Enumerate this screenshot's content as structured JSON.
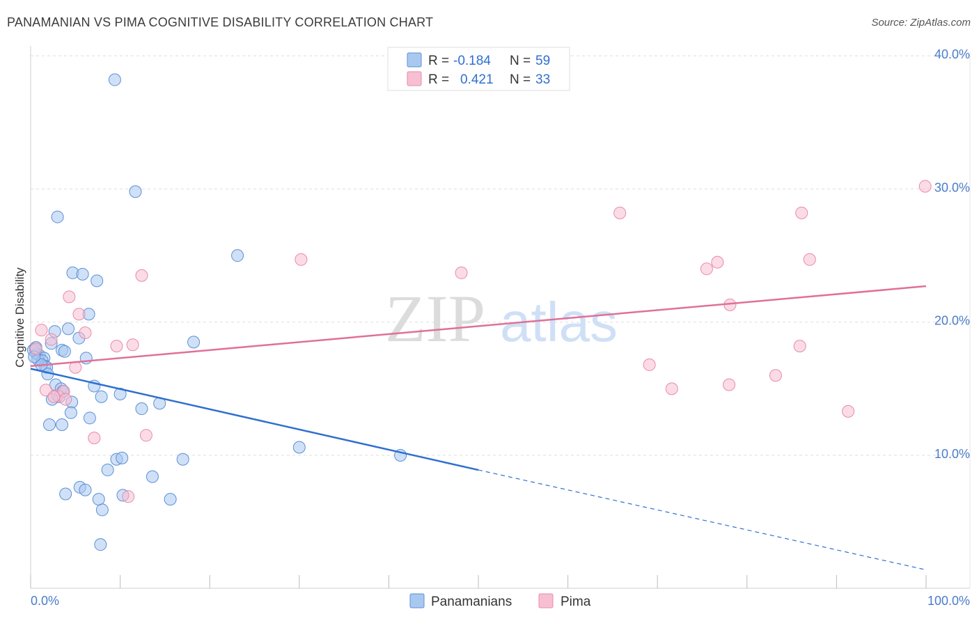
{
  "title": "PANAMANIAN VS PIMA COGNITIVE DISABILITY CORRELATION CHART",
  "source": "Source: ZipAtlas.com",
  "watermark": {
    "zip": "ZIP",
    "atlas": "atlas"
  },
  "colors": {
    "blue_fill": "#a9c8f0",
    "blue_stroke": "#5a8fd6",
    "blue_line": "#2f6fd0",
    "pink_fill": "#f7c0d2",
    "pink_stroke": "#e889aa",
    "pink_line": "#e07098",
    "grid": "#dddddd",
    "axis_label": "#4a7cc9"
  },
  "legend_top": {
    "rows": [
      {
        "r_label": "R =",
        "r_value": "-0.184",
        "n_label": "N =",
        "n_value": "59",
        "series": "blue"
      },
      {
        "r_label": "R =",
        "r_value": "0.421",
        "n_label": "N =",
        "n_value": "33",
        "series": "pink"
      }
    ]
  },
  "legend_bottom": {
    "items": [
      "Panamanians",
      "Pima"
    ]
  },
  "chart_data": {
    "type": "scatter",
    "title": "PANAMANIAN VS PIMA COGNITIVE DISABILITY CORRELATION CHART",
    "xlabel": "",
    "ylabel": "Cognitive Disability",
    "xlim": [
      0,
      100
    ],
    "ylim": [
      0,
      42
    ],
    "x_tick_labels": [
      "0.0%",
      "100.0%"
    ],
    "y_ticks": [
      10,
      20,
      30,
      40
    ],
    "y_tick_labels": [
      "10.0%",
      "20.0%",
      "30.0%",
      "40.0%"
    ],
    "grid": true,
    "series": [
      {
        "name": "Panamanians",
        "color": "blue",
        "points": [
          [
            9.4,
            38.2
          ],
          [
            11.7,
            29.8
          ],
          [
            3,
            27.9
          ],
          [
            23.1,
            25
          ],
          [
            4.7,
            23.7
          ],
          [
            5.8,
            23.6
          ],
          [
            7.4,
            23.1
          ],
          [
            6.5,
            20.6
          ],
          [
            4.2,
            19.5
          ],
          [
            2.7,
            19.3
          ],
          [
            5.4,
            18.8
          ],
          [
            18.2,
            18.5
          ],
          [
            2.3,
            18.4
          ],
          [
            0.5,
            18
          ],
          [
            3.5,
            17.9
          ],
          [
            3.8,
            17.8
          ],
          [
            0.7,
            17.6
          ],
          [
            1,
            17.5
          ],
          [
            1.5,
            17.3
          ],
          [
            6.2,
            17.3
          ],
          [
            0.8,
            17.2
          ],
          [
            1.3,
            17.1
          ],
          [
            1.6,
            16.7
          ],
          [
            1.8,
            16.6
          ],
          [
            1.9,
            16.1
          ],
          [
            7.1,
            15.2
          ],
          [
            2.8,
            15.3
          ],
          [
            3.4,
            15
          ],
          [
            3.6,
            14.8
          ],
          [
            7.9,
            14.4
          ],
          [
            10,
            14.6
          ],
          [
            3.2,
            14.4
          ],
          [
            2.4,
            14.2
          ],
          [
            4.6,
            14
          ],
          [
            14.4,
            13.9
          ],
          [
            12.4,
            13.5
          ],
          [
            4.5,
            13.2
          ],
          [
            6.6,
            12.8
          ],
          [
            2.1,
            12.3
          ],
          [
            3.5,
            12.3
          ],
          [
            30,
            10.6
          ],
          [
            41.3,
            10
          ],
          [
            9.6,
            9.7
          ],
          [
            10.2,
            9.8
          ],
          [
            17,
            9.7
          ],
          [
            8.6,
            8.9
          ],
          [
            13.6,
            8.4
          ],
          [
            5.5,
            7.6
          ],
          [
            6.1,
            7.4
          ],
          [
            3.9,
            7.1
          ],
          [
            10.3,
            7
          ],
          [
            7.6,
            6.7
          ],
          [
            15.6,
            6.7
          ],
          [
            8,
            5.9
          ],
          [
            7.8,
            3.3
          ],
          [
            0.3,
            17.9
          ],
          [
            1.2,
            16.8
          ],
          [
            0.6,
            18.1
          ],
          [
            0.4,
            17.4
          ]
        ],
        "trend": {
          "x": [
            0,
            50
          ],
          "y": [
            16.5,
            8.9
          ],
          "dashed_to": [
            100,
            1.4
          ]
        }
      },
      {
        "name": "Pima",
        "color": "pink",
        "points": [
          [
            99.9,
            30.2
          ],
          [
            65.8,
            28.2
          ],
          [
            86.1,
            28.2
          ],
          [
            30.2,
            24.7
          ],
          [
            87,
            24.7
          ],
          [
            76.7,
            24.5
          ],
          [
            12.4,
            23.5
          ],
          [
            48.1,
            23.7
          ],
          [
            75.5,
            24
          ],
          [
            78.1,
            21.3
          ],
          [
            4.3,
            21.9
          ],
          [
            5.4,
            20.6
          ],
          [
            1.2,
            19.4
          ],
          [
            6.1,
            19.2
          ],
          [
            2.3,
            18.7
          ],
          [
            9.6,
            18.2
          ],
          [
            11.4,
            18.3
          ],
          [
            85.9,
            18.2
          ],
          [
            0.6,
            18
          ],
          [
            5,
            16.6
          ],
          [
            69.1,
            16.8
          ],
          [
            83.2,
            16
          ],
          [
            71.6,
            15
          ],
          [
            78,
            15.3
          ],
          [
            1.7,
            14.9
          ],
          [
            3,
            14.5
          ],
          [
            3.7,
            14.8
          ],
          [
            3.9,
            14.2
          ],
          [
            91.3,
            13.3
          ],
          [
            7.1,
            11.3
          ],
          [
            12.9,
            11.5
          ],
          [
            10.9,
            6.9
          ],
          [
            2.6,
            14.4
          ]
        ],
        "trend": {
          "x": [
            0,
            100
          ],
          "y": [
            16.7,
            22.7
          ]
        }
      }
    ]
  }
}
